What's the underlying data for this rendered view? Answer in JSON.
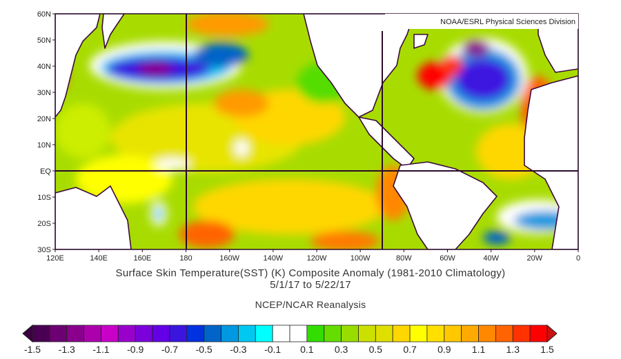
{
  "credit": "NOAA/ESRL Physical Sciences Division",
  "title_line1": "Surface Skin Temperature(SST) (K) Composite Anomaly (1981-2010 Climatology)",
  "title_line2": "5/1/17   to 5/22/17",
  "source": "NCEP/NCAR Reanalysis",
  "lat_labels": [
    "60N",
    "50N",
    "40N",
    "30N",
    "20N",
    "10N",
    "EQ",
    "10S",
    "20S",
    "30S"
  ],
  "lon_labels": [
    "120E",
    "140E",
    "160E",
    "180",
    "160W",
    "140W",
    "120W",
    "100W",
    "80W",
    "60W",
    "40W",
    "20W",
    "0"
  ],
  "colorbar": {
    "labels": [
      "-1.5",
      "-1.3",
      "-1.1",
      "-0.9",
      "-0.7",
      "-0.5",
      "-0.3",
      "-0.1",
      "0.1",
      "0.3",
      "0.5",
      "0.7",
      "0.9",
      "1.1",
      "1.3",
      "1.5"
    ],
    "colors": [
      "#4a0052",
      "#6c0072",
      "#8a008c",
      "#ad00ad",
      "#c800c8",
      "#9a00cc",
      "#7a00dc",
      "#6400e6",
      "#3c14e0",
      "#0032e0",
      "#0064c8",
      "#0098e0",
      "#00c8f0",
      "#00ffff",
      "#ffffff",
      "#ffffff",
      "#33dd00",
      "#66dd00",
      "#99dd00",
      "#cce000",
      "#e0e000",
      "#ffd700",
      "#ffff00",
      "#ffe000",
      "#ffc800",
      "#ffaa00",
      "#ff8800",
      "#ff6400",
      "#ff3200",
      "#ff0000"
    ],
    "low_end_color": "#3a0040",
    "high_end_color": "#cc1010"
  }
}
